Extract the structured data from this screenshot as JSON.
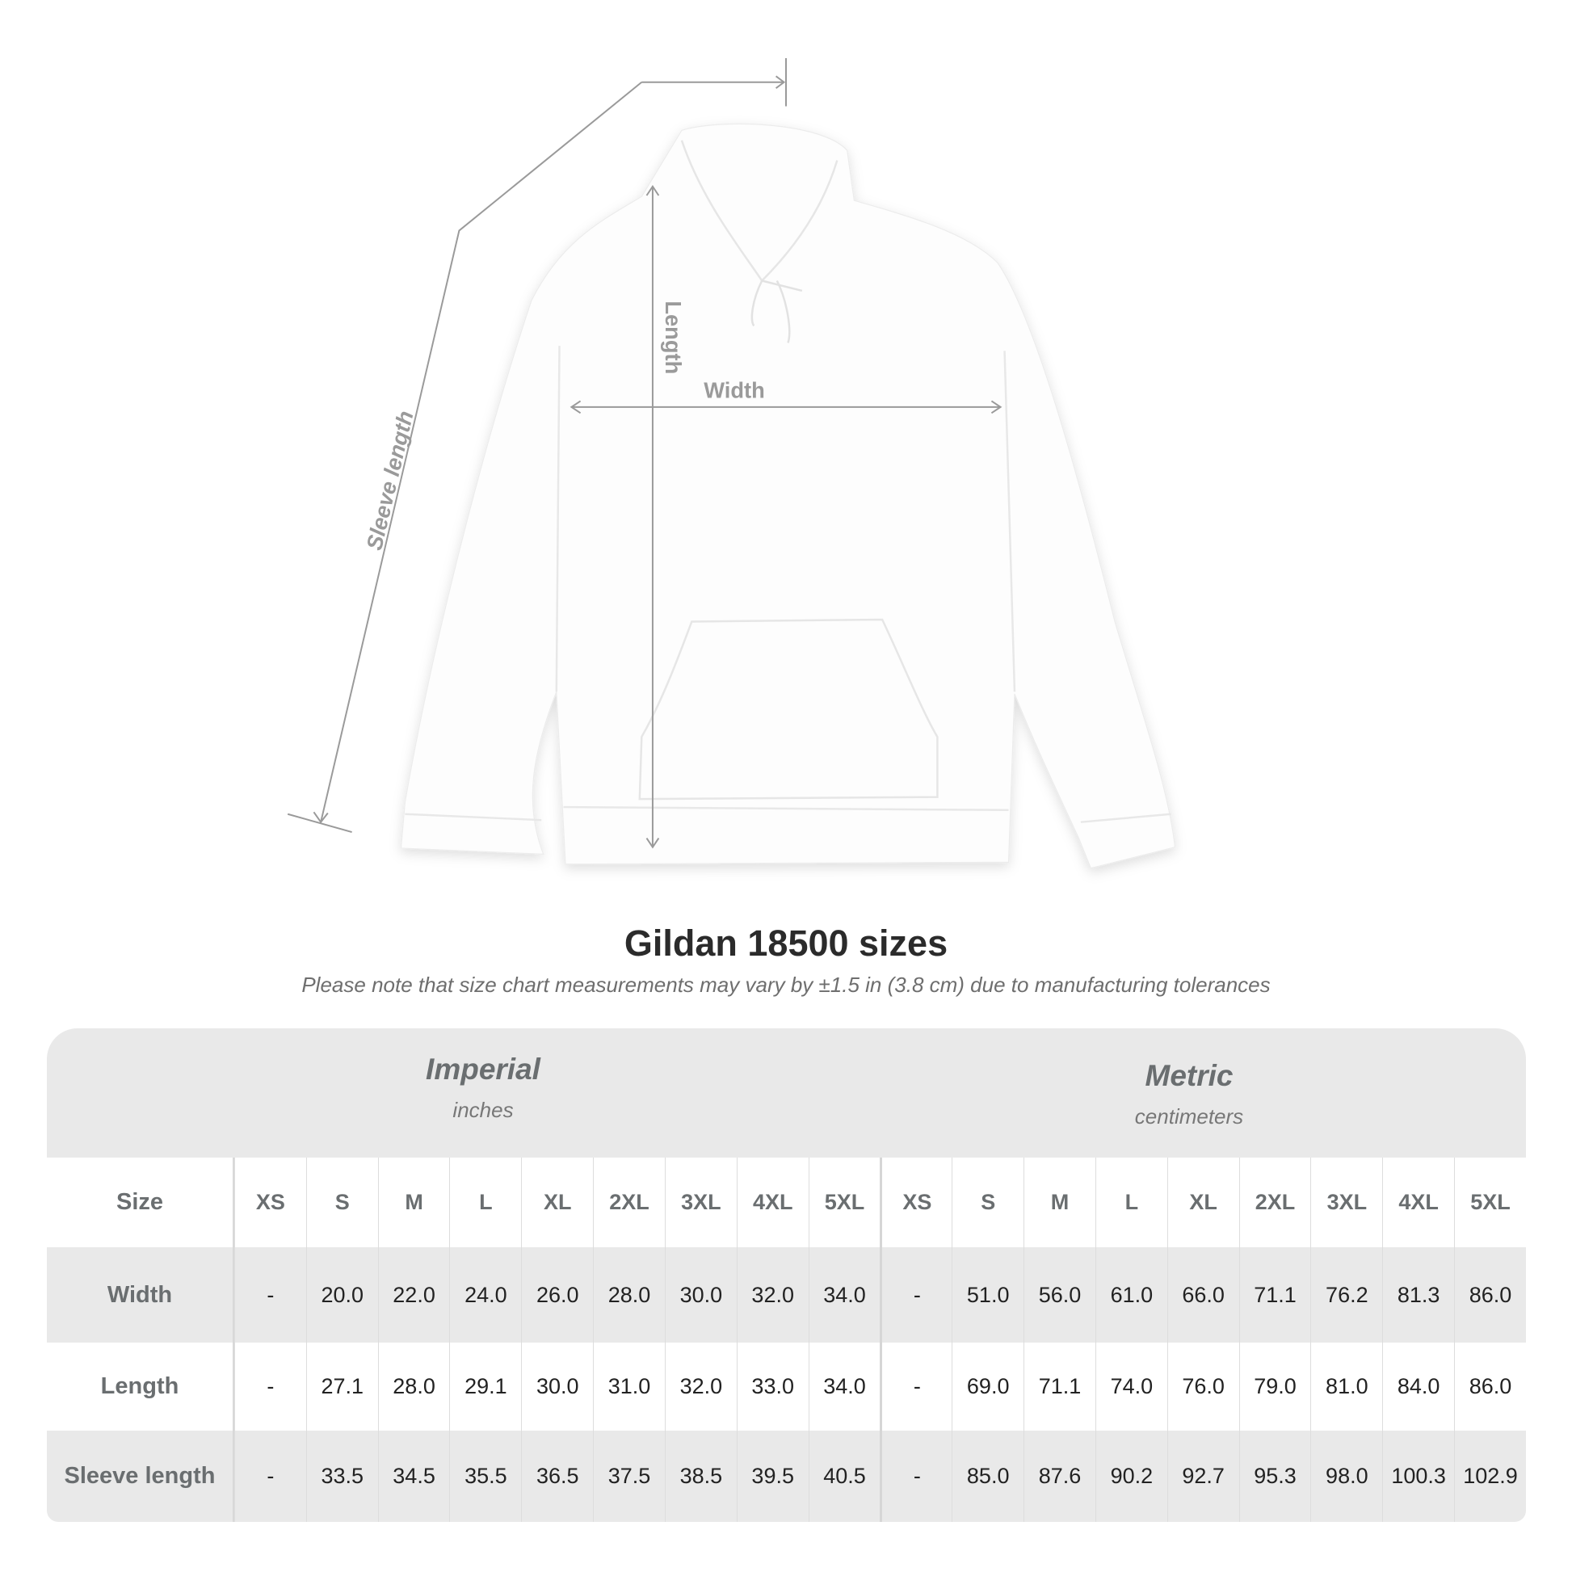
{
  "diagram": {
    "sleeve_label": "Sleeve length",
    "length_label": "Length",
    "width_label": "Width",
    "line_color": "#999999"
  },
  "title": "Gildan 18500 sizes",
  "subtitle": "Please note that size chart measurements may vary by ±1.5 in (3.8 cm) due to manufacturing tolerances",
  "table": {
    "imperial": {
      "name": "Imperial",
      "unit": "inches"
    },
    "metric": {
      "name": "Metric",
      "unit": "centimeters"
    },
    "size_label": "Size",
    "sizes": [
      "XS",
      "S",
      "M",
      "L",
      "XL",
      "2XL",
      "3XL",
      "4XL",
      "5XL"
    ],
    "rows": [
      {
        "label": "Width",
        "imperial": [
          "-",
          "20.0",
          "22.0",
          "24.0",
          "26.0",
          "28.0",
          "30.0",
          "32.0",
          "34.0"
        ],
        "metric": [
          "-",
          "51.0",
          "56.0",
          "61.0",
          "66.0",
          "71.1",
          "76.2",
          "81.3",
          "86.0"
        ]
      },
      {
        "label": "Length",
        "imperial": [
          "-",
          "27.1",
          "28.0",
          "29.1",
          "30.0",
          "31.0",
          "32.0",
          "33.0",
          "34.0"
        ],
        "metric": [
          "-",
          "69.0",
          "71.1",
          "74.0",
          "76.0",
          "79.0",
          "81.0",
          "84.0",
          "86.0"
        ]
      },
      {
        "label": "Sleeve length",
        "imperial": [
          "-",
          "33.5",
          "34.5",
          "35.5",
          "36.5",
          "37.5",
          "38.5",
          "39.5",
          "40.5"
        ],
        "metric": [
          "-",
          "85.0",
          "87.6",
          "90.2",
          "92.7",
          "95.3",
          "98.0",
          "100.3",
          "102.9"
        ]
      }
    ]
  }
}
